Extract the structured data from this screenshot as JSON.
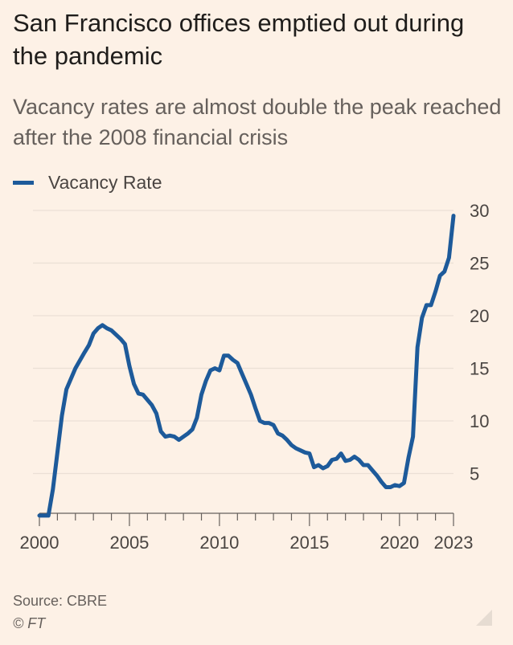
{
  "title": "San Francisco offices emptied out during the pandemic",
  "subtitle": "Vacancy rates are almost double the peak reached after the 2008 financial crisis",
  "legend": {
    "label": "Vacancy Rate",
    "color": "#1d5a9a"
  },
  "source": "Source: CBRE",
  "copyright": "© FT",
  "chart_data": {
    "type": "line",
    "title": "San Francisco offices emptied out during the pandemic",
    "subtitle": "Vacancy rates are almost double the peak reached after the 2008 financial crisis",
    "xlabel": "",
    "ylabel": "",
    "xlim": [
      2000,
      2023
    ],
    "ylim": [
      0,
      30
    ],
    "x_ticks": [
      2000,
      2005,
      2010,
      2015,
      2020,
      2023
    ],
    "y_ticks": [
      5,
      10,
      15,
      20,
      25,
      30
    ],
    "y_axis_position": "right",
    "grid": "horizontal",
    "legend_position": "top-left",
    "series": [
      {
        "name": "Vacancy Rate",
        "color": "#1d5a9a",
        "x": [
          2000.0,
          2000.25,
          2000.5,
          2000.75,
          2001.0,
          2001.25,
          2001.5,
          2002.0,
          2002.5,
          2002.75,
          2003.0,
          2003.25,
          2003.5,
          2003.75,
          2004.0,
          2004.25,
          2004.5,
          2004.75,
          2005.0,
          2005.25,
          2005.5,
          2005.75,
          2006.0,
          2006.25,
          2006.5,
          2006.75,
          2007.0,
          2007.25,
          2007.5,
          2007.75,
          2008.0,
          2008.25,
          2008.5,
          2008.75,
          2009.0,
          2009.25,
          2009.5,
          2009.75,
          2010.0,
          2010.25,
          2010.5,
          2010.75,
          2011.0,
          2011.25,
          2011.5,
          2011.75,
          2012.0,
          2012.25,
          2012.5,
          2012.75,
          2013.0,
          2013.25,
          2013.5,
          2013.75,
          2014.0,
          2014.25,
          2014.5,
          2014.75,
          2015.0,
          2015.25,
          2015.5,
          2015.75,
          2016.0,
          2016.25,
          2016.5,
          2016.75,
          2017.0,
          2017.25,
          2017.5,
          2017.75,
          2018.0,
          2018.25,
          2018.5,
          2018.75,
          2019.0,
          2019.25,
          2019.5,
          2019.75,
          2020.0,
          2020.25,
          2020.5,
          2020.75,
          2021.0,
          2021.25,
          2021.5,
          2021.75,
          2022.0,
          2022.25,
          2022.5,
          2022.75,
          2023.0
        ],
        "values": [
          1.0,
          1.0,
          1.0,
          3.5,
          7.0,
          10.5,
          13.0,
          15.0,
          16.5,
          17.2,
          18.3,
          18.8,
          19.1,
          18.8,
          18.6,
          18.2,
          17.8,
          17.3,
          15.2,
          13.5,
          12.6,
          12.5,
          12.0,
          11.5,
          10.7,
          9.0,
          8.5,
          8.6,
          8.5,
          8.2,
          8.5,
          8.8,
          9.2,
          10.3,
          12.5,
          13.8,
          14.8,
          15.0,
          14.8,
          16.2,
          16.2,
          15.8,
          15.5,
          14.5,
          13.5,
          12.5,
          11.2,
          10.0,
          9.8,
          9.8,
          9.6,
          8.8,
          8.6,
          8.2,
          7.7,
          7.4,
          7.2,
          7.0,
          6.9,
          5.6,
          5.8,
          5.5,
          5.7,
          6.3,
          6.4,
          6.9,
          6.2,
          6.3,
          6.6,
          6.3,
          5.8,
          5.8,
          5.3,
          4.8,
          4.2,
          3.7,
          3.7,
          3.9,
          3.8,
          4.1,
          6.5,
          8.5,
          17.0,
          19.8,
          21.0,
          21.0,
          22.3,
          23.8,
          24.2,
          25.5,
          29.5
        ]
      }
    ]
  }
}
